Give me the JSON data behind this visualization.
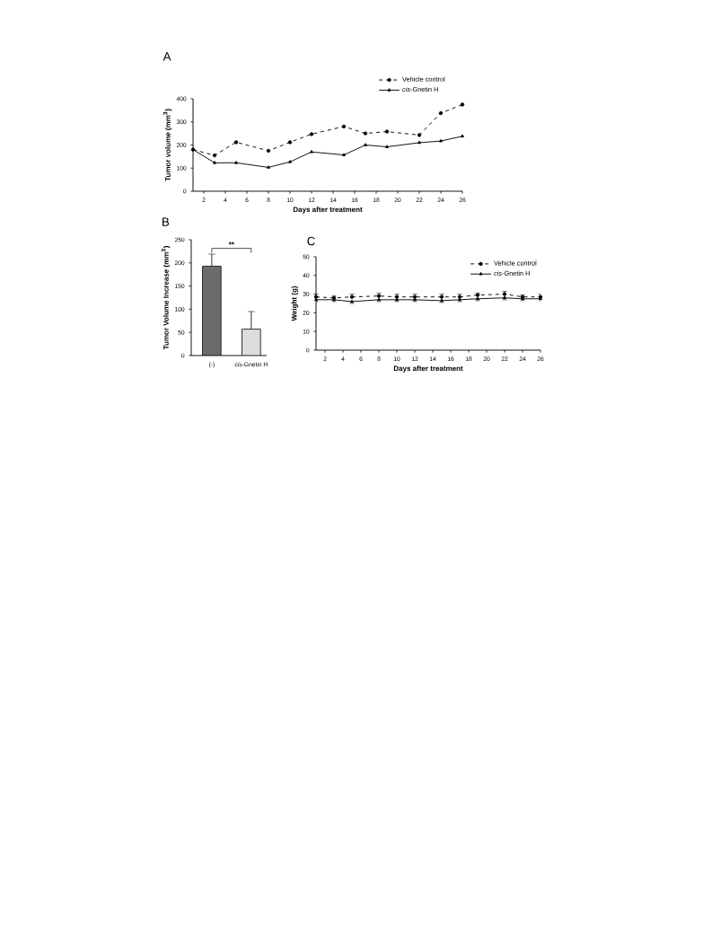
{
  "chart_data": [
    {
      "type": "line",
      "title": "A",
      "xlabel": "Days after treatment",
      "ylabel": "Tumor volume (mm$^{3}$)",
      "xlim": [
        1,
        26
      ],
      "xticks": [
        2,
        4,
        6,
        8,
        10,
        12,
        14,
        16,
        18,
        20,
        22,
        24,
        26
      ],
      "ylim": [
        0,
        400
      ],
      "yticks": [
        0,
        100,
        200,
        300,
        400
      ],
      "legend": "top right",
      "series": [
        {
          "name": "Vehicle control",
          "color": "#000000",
          "marker": "circle",
          "line_style": "dashed",
          "x": [
            1,
            3,
            5,
            8,
            10,
            12,
            15,
            17,
            19,
            22,
            24,
            26
          ],
          "values": [
            180,
            155,
            212,
            175,
            212,
            247,
            280,
            250,
            258,
            243,
            338,
            375
          ]
        },
        {
          "name": "*cis*-Gnetin H",
          "color": "#000000",
          "marker": "triangle",
          "line_style": "solid",
          "x": [
            1,
            3,
            5,
            8,
            10,
            12,
            15,
            17,
            19,
            22,
            24,
            26
          ],
          "values": [
            180,
            123,
            123,
            103,
            127,
            170,
            157,
            200,
            192,
            210,
            217,
            238
          ]
        }
      ]
    },
    {
      "type": "bar",
      "title": "B",
      "ylabel": "Tumor Volume Increase (mm$^{3}$)",
      "categories": [
        "(-)",
        "*cis*-Gnetin H"
      ],
      "values": [
        193,
        57
      ],
      "colors": [
        "#6b6b6b",
        "#dcdcdc"
      ],
      "errors": [
        [
          193,
          219
        ],
        [
          57,
          95
        ]
      ],
      "ylim": [
        0,
        250
      ],
      "yticks": [
        0,
        50,
        100,
        150,
        200,
        250
      ],
      "annotations": [
        "**"
      ]
    },
    {
      "type": "line",
      "title": "C",
      "xlabel": "Days after treatment",
      "ylabel": "Weight (g)",
      "xlim": [
        1,
        26
      ],
      "xticks": [
        2,
        4,
        6,
        8,
        10,
        12,
        14,
        16,
        18,
        20,
        22,
        24,
        26
      ],
      "ylim": [
        0,
        50
      ],
      "yticks": [
        0,
        10,
        20,
        30,
        40,
        50
      ],
      "legend": "top right",
      "series": [
        {
          "name": "Vehicle control",
          "color": "#000000",
          "marker": "circle",
          "line_style": "dashed",
          "x": [
            1,
            3,
            5,
            8,
            10,
            12,
            15,
            17,
            19,
            22,
            24,
            26
          ],
          "values": [
            28.5,
            28,
            28.5,
            29,
            28.5,
            28.5,
            28.5,
            28.5,
            29.5,
            30,
            28.5,
            28.5
          ],
          "errors": [
            [
              28.5,
              30
            ],
            [
              28,
              29
            ],
            [
              28.5,
              30
            ],
            [
              29,
              30.5
            ],
            [
              28.5,
              30
            ],
            [
              28.5,
              30
            ],
            [
              28.5,
              30
            ],
            [
              28.5,
              30
            ],
            [
              29.5,
              30.5
            ],
            [
              30,
              31.5
            ],
            [
              28.5,
              29.5
            ],
            [
              28.5,
              30
            ]
          ]
        },
        {
          "name": "*cis*-Gnetin H",
          "color": "#000000",
          "marker": "triangle",
          "line_style": "solid",
          "x": [
            1,
            3,
            5,
            8,
            10,
            12,
            15,
            17,
            19,
            22,
            24,
            26
          ],
          "values": [
            27,
            27,
            26,
            27,
            27,
            27,
            26.5,
            27,
            27.5,
            28,
            27.5,
            27.5
          ],
          "errors": [
            [
              26,
              27
            ],
            [
              26,
              27
            ],
            [
              25,
              26
            ],
            [
              26,
              27
            ],
            [
              26,
              27
            ],
            [
              26,
              27
            ],
            [
              25.5,
              26.5
            ],
            [
              26,
              27
            ],
            [
              26.5,
              27.5
            ],
            [
              27,
              28
            ],
            [
              26.5,
              27.5
            ],
            [
              26.5,
              27.5
            ]
          ]
        }
      ]
    }
  ]
}
